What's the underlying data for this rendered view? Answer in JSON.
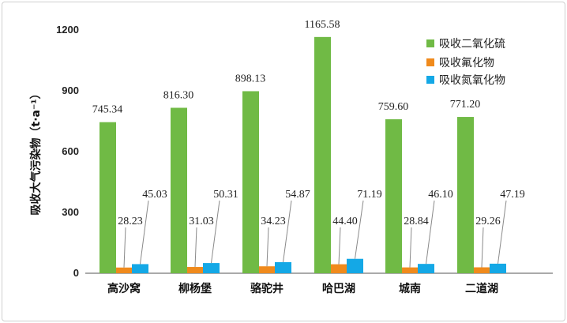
{
  "chart_data": {
    "type": "bar",
    "title": "",
    "xlabel": "",
    "ylabel": "吸收大气污染物（t·a⁻¹）",
    "ylim": [
      0,
      1200
    ],
    "yticks": [
      0,
      300,
      600,
      900,
      1200
    ],
    "yticks_labels": [
      "0",
      "300",
      "600",
      "900",
      "1200"
    ],
    "categories": [
      "高沙窝",
      "柳杨堡",
      "骆驼井",
      "哈巴湖",
      "城南",
      "二道湖"
    ],
    "series": [
      {
        "name": "吸收二氧化硫",
        "color": "#70ba45",
        "values": [
          745.34,
          816.3,
          898.13,
          1165.58,
          759.6,
          771.2
        ],
        "labels": [
          "745.34",
          "816.30",
          "898.13",
          "1165.58",
          "759.60",
          "771.20"
        ]
      },
      {
        "name": "吸收氟化物",
        "color": "#f08a1c",
        "values": [
          28.23,
          31.03,
          34.23,
          44.4,
          28.84,
          29.26
        ],
        "labels": [
          "28.23",
          "31.03",
          "34.23",
          "44.40",
          "28.84",
          "29.26"
        ]
      },
      {
        "name": "吸收氮氧化物",
        "color": "#14a8e6",
        "values": [
          45.03,
          50.31,
          54.87,
          71.19,
          46.1,
          47.19
        ],
        "labels": [
          "45.03",
          "50.31",
          "54.87",
          "71.19",
          "46.10",
          "47.19"
        ]
      }
    ],
    "legend_position": "top-right",
    "grid": false
  }
}
